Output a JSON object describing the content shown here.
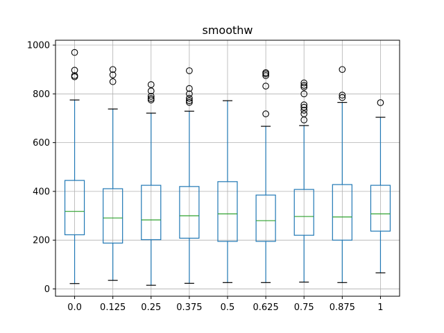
{
  "chart_data": {
    "type": "box",
    "title": "smoothw",
    "xlabel": "",
    "ylabel": "",
    "categories": [
      "0.0",
      "0.125",
      "0.25",
      "0.375",
      "0.5",
      "0.625",
      "0.75",
      "0.875",
      "1"
    ],
    "ylim": [
      -30,
      1020
    ],
    "yticks": [
      0,
      200,
      400,
      600,
      800,
      1000
    ],
    "grid": true,
    "legend": "none",
    "colors": {
      "box": "#1f77b4",
      "median": "#2ca02c",
      "grid": "#b0b0b0",
      "axes": "#000000"
    },
    "boxes": [
      {
        "category": "0.0",
        "whisker_low": 22,
        "q1": 222,
        "median": 318,
        "q3": 445,
        "whisker_high": 775,
        "outliers": [
          870,
          875,
          897,
          970
        ]
      },
      {
        "category": "0.125",
        "whisker_low": 35,
        "q1": 188,
        "median": 291,
        "q3": 411,
        "whisker_high": 738,
        "outliers": [
          850,
          878,
          900
        ]
      },
      {
        "category": "0.25",
        "whisker_low": 15,
        "q1": 202,
        "median": 283,
        "q3": 425,
        "whisker_high": 721,
        "outliers": [
          775,
          781,
          790,
          812,
          838
        ]
      },
      {
        "category": "0.375",
        "whisker_low": 23,
        "q1": 208,
        "median": 300,
        "q3": 420,
        "whisker_high": 729,
        "outliers": [
          765,
          772,
          782,
          800,
          822,
          895
        ]
      },
      {
        "category": "0.5",
        "whisker_low": 26,
        "q1": 195,
        "median": 308,
        "q3": 440,
        "whisker_high": 772,
        "outliers": []
      },
      {
        "category": "0.625",
        "whisker_low": 26,
        "q1": 195,
        "median": 280,
        "q3": 385,
        "whisker_high": 667,
        "outliers": [
          718,
          832,
          875,
          882,
          887
        ]
      },
      {
        "category": "0.75",
        "whisker_low": 28,
        "q1": 220,
        "median": 297,
        "q3": 408,
        "whisker_high": 670,
        "outliers": [
          693,
          718,
          733,
          745,
          755,
          800,
          828,
          835,
          845
        ]
      },
      {
        "category": "0.875",
        "whisker_low": 26,
        "q1": 200,
        "median": 295,
        "q3": 428,
        "whisker_high": 765,
        "outliers": [
          785,
          795,
          900
        ]
      },
      {
        "category": "1",
        "whisker_low": 66,
        "q1": 237,
        "median": 308,
        "q3": 425,
        "whisker_high": 704,
        "outliers": [
          764
        ]
      }
    ]
  }
}
